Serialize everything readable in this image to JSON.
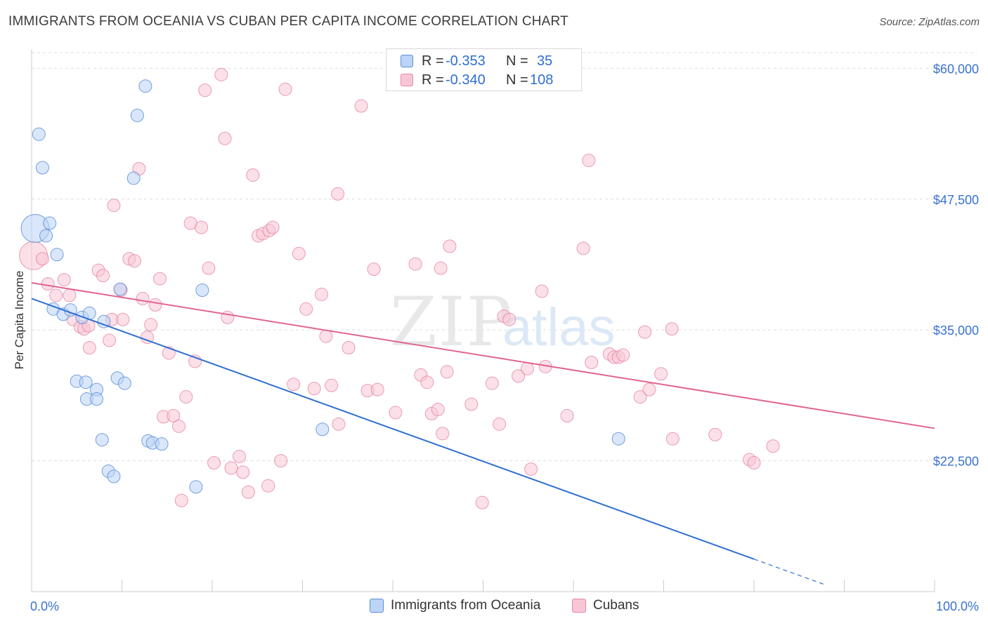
{
  "header": {
    "title": "IMMIGRANTS FROM OCEANIA VS CUBAN PER CAPITA INCOME CORRELATION CHART",
    "source": "Source: ZipAtlas.com"
  },
  "watermark": {
    "zip": "ZIP",
    "atlas": "atlas"
  },
  "legend": {
    "r_label": "R =",
    "n_label": "N =",
    "blue": {
      "r": "-0.353",
      "n": "35"
    },
    "pink": {
      "r": "-0.340",
      "n": "108"
    }
  },
  "colors": {
    "blue": "#5b8fd8",
    "blue_fill": "#bcd4f6",
    "blue_line": "#2f6fd1",
    "pink": "#e684a4",
    "pink_fill": "#f8c7d6",
    "pink_line": "#e06591",
    "tick_label": "#3a72d0",
    "grid": "#dddddd"
  },
  "chart_data": {
    "type": "scatter",
    "title": "IMMIGRANTS FROM OCEANIA VS CUBAN PER CAPITA INCOME CORRELATION CHART",
    "xlabel": "",
    "ylabel": "Per Capita Income",
    "xlim": [
      0,
      100
    ],
    "ylim": [
      11000,
      61500
    ],
    "x_tick_labels": [
      "0.0%",
      "100.0%"
    ],
    "y_ticks": [
      {
        "value": 22500,
        "label": "$22,500"
      },
      {
        "value": 35000,
        "label": "$35,000"
      },
      {
        "value": 47500,
        "label": "$47,500"
      },
      {
        "value": 60000,
        "label": "$60,000"
      }
    ],
    "series": [
      {
        "name": "Immigrants from Oceania",
        "r": -0.353,
        "n": 35,
        "trend": {
          "x0": 0,
          "y0": 38000,
          "x1": 80,
          "y1": 13100,
          "dashed_to_x": 88
        },
        "points": [
          [
            0.4,
            44700,
            20
          ],
          [
            0.8,
            53700,
            9
          ],
          [
            1.2,
            50500,
            9
          ],
          [
            1.6,
            44000,
            9
          ],
          [
            2.0,
            45200,
            9
          ],
          [
            2.8,
            42200,
            9
          ],
          [
            2.4,
            37000,
            9
          ],
          [
            3.5,
            36500,
            9
          ],
          [
            4.3,
            36900,
            9
          ],
          [
            5.6,
            36200,
            9
          ],
          [
            6.4,
            36600,
            9
          ],
          [
            8.0,
            35800,
            9
          ],
          [
            9.8,
            38900,
            9
          ],
          [
            5.0,
            30100,
            9
          ],
          [
            6.0,
            30000,
            9
          ],
          [
            7.2,
            29300,
            9
          ],
          [
            6.1,
            28400,
            9
          ],
          [
            7.2,
            28400,
            9
          ],
          [
            9.5,
            30400,
            9
          ],
          [
            10.3,
            29900,
            9
          ],
          [
            7.8,
            24500,
            9
          ],
          [
            8.5,
            21500,
            9
          ],
          [
            9.1,
            21000,
            9
          ],
          [
            12.9,
            24400,
            9
          ],
          [
            13.4,
            24200,
            9
          ],
          [
            14.4,
            24100,
            9
          ],
          [
            18.2,
            20000,
            9
          ],
          [
            11.3,
            49500,
            9
          ],
          [
            11.7,
            55500,
            9
          ],
          [
            12.6,
            58300,
            9
          ],
          [
            18.9,
            38800,
            9
          ],
          [
            32.2,
            25500,
            9
          ],
          [
            65.0,
            24600,
            9
          ]
        ]
      },
      {
        "name": "Cubans",
        "r": -0.34,
        "n": 108,
        "trend": {
          "x0": 0,
          "y0": 39500,
          "x1": 100,
          "y1": 25600
        },
        "points": [
          [
            0.2,
            42100,
            20
          ],
          [
            1.2,
            41800,
            9
          ],
          [
            1.8,
            39400,
            9
          ],
          [
            2.7,
            38300,
            9
          ],
          [
            3.6,
            39800,
            9
          ],
          [
            4.2,
            38300,
            9
          ],
          [
            4.6,
            36000,
            9
          ],
          [
            5.4,
            35300,
            9
          ],
          [
            5.8,
            35100,
            9
          ],
          [
            6.3,
            35400,
            9
          ],
          [
            6.4,
            33300,
            9
          ],
          [
            7.4,
            40700,
            9
          ],
          [
            7.9,
            40200,
            9
          ],
          [
            8.6,
            34000,
            9
          ],
          [
            8.9,
            36000,
            9
          ],
          [
            9.1,
            46900,
            9
          ],
          [
            9.9,
            38800,
            9
          ],
          [
            10.1,
            36000,
            9
          ],
          [
            10.8,
            41800,
            9
          ],
          [
            11.4,
            41600,
            9
          ],
          [
            11.9,
            50400,
            9
          ],
          [
            12.3,
            38000,
            9
          ],
          [
            12.8,
            34300,
            9
          ],
          [
            13.2,
            35500,
            9
          ],
          [
            13.7,
            37400,
            9
          ],
          [
            14.2,
            39900,
            9
          ],
          [
            14.6,
            26700,
            9
          ],
          [
            15.2,
            32800,
            9
          ],
          [
            15.7,
            26800,
            9
          ],
          [
            16.3,
            25800,
            9
          ],
          [
            16.6,
            18700,
            9
          ],
          [
            17.1,
            28600,
            9
          ],
          [
            17.6,
            45200,
            9
          ],
          [
            18.1,
            32000,
            9
          ],
          [
            18.8,
            44800,
            9
          ],
          [
            19.2,
            57900,
            9
          ],
          [
            19.6,
            40900,
            9
          ],
          [
            20.2,
            22300,
            9
          ],
          [
            21.0,
            59400,
            9
          ],
          [
            21.4,
            53300,
            9
          ],
          [
            21.7,
            36200,
            9
          ],
          [
            22.1,
            21800,
            9
          ],
          [
            23.0,
            22900,
            9
          ],
          [
            23.4,
            21400,
            9
          ],
          [
            24.0,
            19500,
            9
          ],
          [
            24.5,
            49800,
            9
          ],
          [
            25.1,
            44000,
            9
          ],
          [
            25.6,
            44200,
            9
          ],
          [
            26.3,
            44500,
            9
          ],
          [
            26.7,
            44800,
            9
          ],
          [
            26.2,
            20100,
            9
          ],
          [
            27.6,
            22500,
            9
          ],
          [
            28.1,
            58000,
            9
          ],
          [
            29.0,
            29800,
            9
          ],
          [
            29.6,
            42300,
            9
          ],
          [
            30.4,
            37000,
            9
          ],
          [
            31.3,
            29400,
            9
          ],
          [
            32.1,
            38400,
            9
          ],
          [
            32.6,
            34400,
            9
          ],
          [
            33.2,
            29700,
            9
          ],
          [
            34.0,
            26000,
            9
          ],
          [
            33.9,
            48000,
            9
          ],
          [
            35.1,
            33300,
            9
          ],
          [
            36.5,
            56400,
            9
          ],
          [
            37.2,
            29200,
            9
          ],
          [
            37.9,
            40800,
            9
          ],
          [
            38.3,
            29300,
            9
          ],
          [
            40.3,
            27100,
            9
          ],
          [
            42.5,
            41300,
            9
          ],
          [
            43.1,
            30700,
            9
          ],
          [
            43.8,
            30000,
            9
          ],
          [
            44.3,
            27000,
            9
          ],
          [
            45.0,
            27400,
            9
          ],
          [
            45.3,
            40900,
            9
          ],
          [
            45.5,
            25100,
            9
          ],
          [
            46.0,
            31000,
            9
          ],
          [
            46.3,
            43000,
            9
          ],
          [
            48.7,
            27900,
            9
          ],
          [
            49.9,
            18500,
            9
          ],
          [
            51.0,
            29900,
            9
          ],
          [
            51.8,
            26000,
            9
          ],
          [
            52.3,
            36300,
            9
          ],
          [
            52.9,
            36000,
            9
          ],
          [
            53.9,
            30600,
            9
          ],
          [
            54.9,
            31300,
            9
          ],
          [
            55.3,
            21700,
            9
          ],
          [
            56.5,
            38700,
            9
          ],
          [
            56.9,
            31500,
            9
          ],
          [
            59.3,
            26800,
            9
          ],
          [
            61.1,
            42800,
            9
          ],
          [
            61.7,
            51200,
            9
          ],
          [
            62.0,
            31900,
            9
          ],
          [
            64.0,
            32700,
            9
          ],
          [
            64.5,
            32400,
            9
          ],
          [
            65.0,
            32400,
            9
          ],
          [
            65.5,
            32600,
            9
          ],
          [
            67.4,
            28600,
            9
          ],
          [
            67.9,
            34800,
            9
          ],
          [
            68.4,
            29300,
            9
          ],
          [
            69.7,
            30800,
            9
          ],
          [
            70.9,
            35100,
            9
          ],
          [
            71.0,
            24600,
            9
          ],
          [
            75.7,
            25000,
            9
          ],
          [
            79.5,
            22600,
            9
          ],
          [
            80.0,
            22300,
            9
          ],
          [
            82.1,
            23900,
            9
          ]
        ]
      }
    ]
  },
  "bottom_legend": {
    "blue_label": "Immigrants from Oceania",
    "pink_label": "Cubans"
  }
}
